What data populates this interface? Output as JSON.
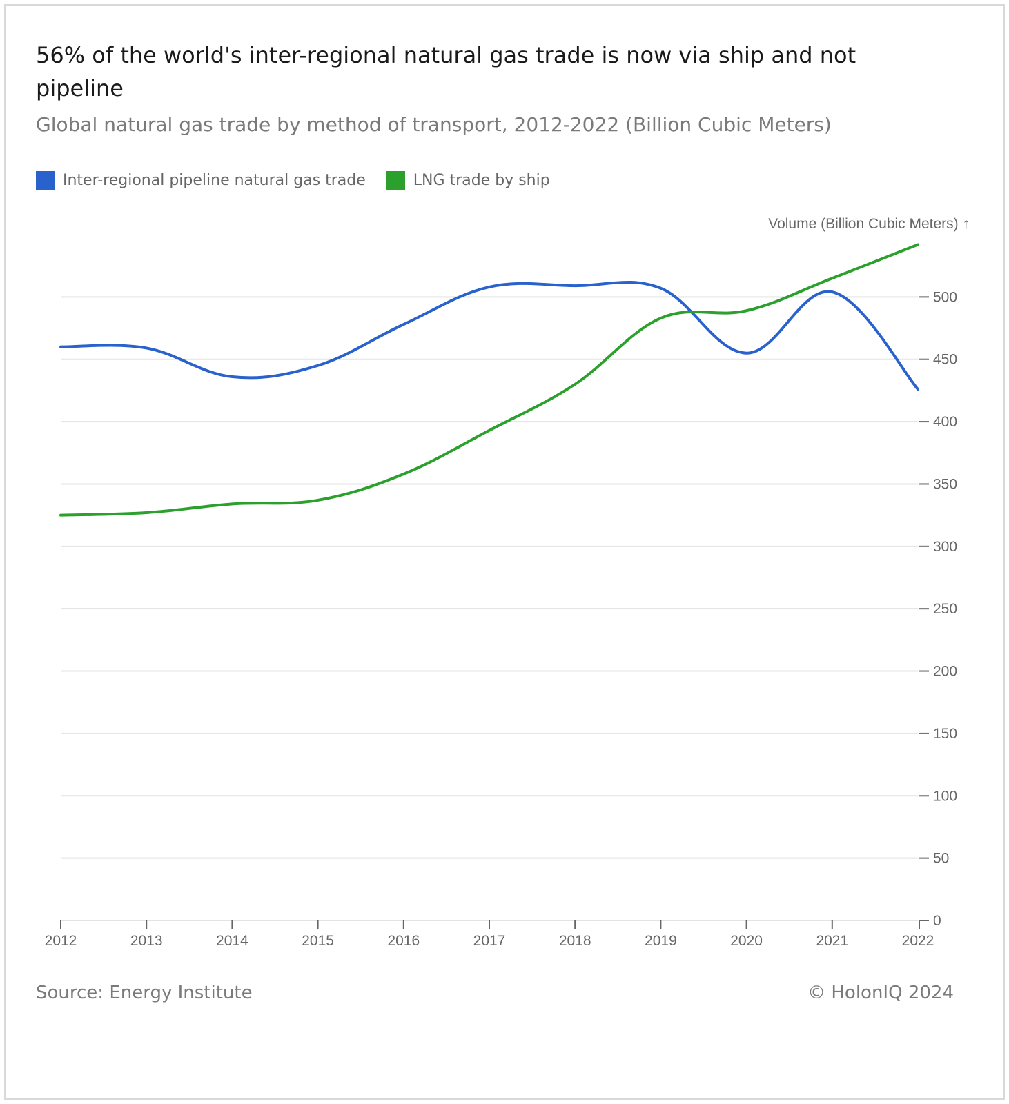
{
  "title": "56% of the world's inter-regional natural gas trade is now via ship and not pipeline",
  "subtitle": "Global natural gas trade by method of transport, 2012-2022 (Billion Cubic Meters)",
  "source": "Source: Energy Institute",
  "copyright": "© HolonIQ 2024",
  "chart_data": {
    "type": "line",
    "x": [
      2012,
      2013,
      2014,
      2015,
      2016,
      2017,
      2018,
      2019,
      2020,
      2021,
      2022
    ],
    "xticks": [
      "2012",
      "2013",
      "2014",
      "2015",
      "2016",
      "2017",
      "2018",
      "2019",
      "2020",
      "2021",
      "2022"
    ],
    "ylabel": "Volume (Billion Cubic Meters) ↑",
    "ylim": [
      0,
      550
    ],
    "yticks": [
      0,
      50,
      100,
      150,
      200,
      250,
      300,
      350,
      400,
      450,
      500
    ],
    "grid": true,
    "legend_position": "top-left",
    "series": [
      {
        "name": "Inter-regional pipeline natural gas trade",
        "color": "#2962cc",
        "values": [
          460,
          459,
          436,
          445,
          478,
          508,
          509,
          507,
          455,
          504,
          426
        ]
      },
      {
        "name": "LNG trade by ship",
        "color": "#2ca02c",
        "values": [
          325,
          327,
          334,
          337,
          358,
          393,
          430,
          483,
          489,
          515,
          542
        ]
      }
    ]
  }
}
